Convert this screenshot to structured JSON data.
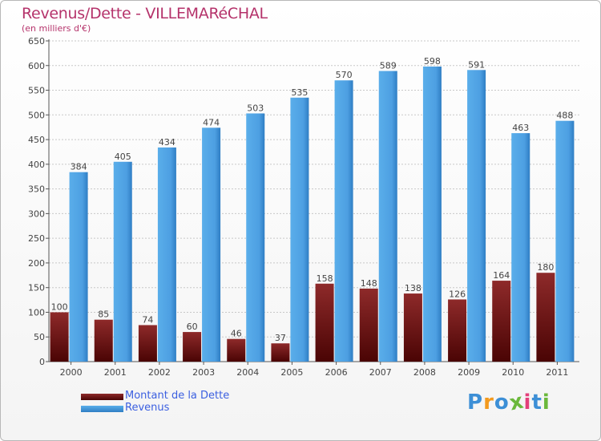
{
  "chart_data": {
    "type": "bar",
    "title": "Revenus/Dette - VILLEMARéCHAL",
    "subtitle": "(en milliers d'€)",
    "categories": [
      "2000",
      "2001",
      "2002",
      "2003",
      "2004",
      "2005",
      "2006",
      "2007",
      "2008",
      "2009",
      "2010",
      "2011"
    ],
    "series": [
      {
        "name": "Montant de la Dette",
        "color": "#6b0e0e",
        "values": [
          100,
          85,
          74,
          60,
          46,
          37,
          158,
          148,
          138,
          126,
          164,
          180
        ]
      },
      {
        "name": "Revenus",
        "color": "#4a9de0",
        "values": [
          384,
          405,
          434,
          474,
          503,
          535,
          570,
          589,
          598,
          591,
          463,
          488
        ]
      }
    ],
    "ylim": [
      0,
      650
    ],
    "yticks": [
      "0",
      "50",
      "100",
      "150",
      "200",
      "250",
      "300",
      "350",
      "400",
      "450",
      "500",
      "550",
      "600",
      "650"
    ],
    "grid": true,
    "legend": "bottom-left"
  },
  "legend": {
    "debt_label": "Montant de la Dette",
    "revenue_label": "Revenus",
    "debt_color": "#6b0e0e",
    "revenue_color": "#4a9de0"
  },
  "logo": {
    "letters": [
      "P",
      "r",
      "o",
      "x",
      "i",
      "t",
      "i"
    ],
    "colors": [
      "#3d8fd6",
      "#f39a1e",
      "#3d8fd6",
      "#6bb83b",
      "#e3407a",
      "#3d8fd6",
      "#6bb83b"
    ]
  }
}
